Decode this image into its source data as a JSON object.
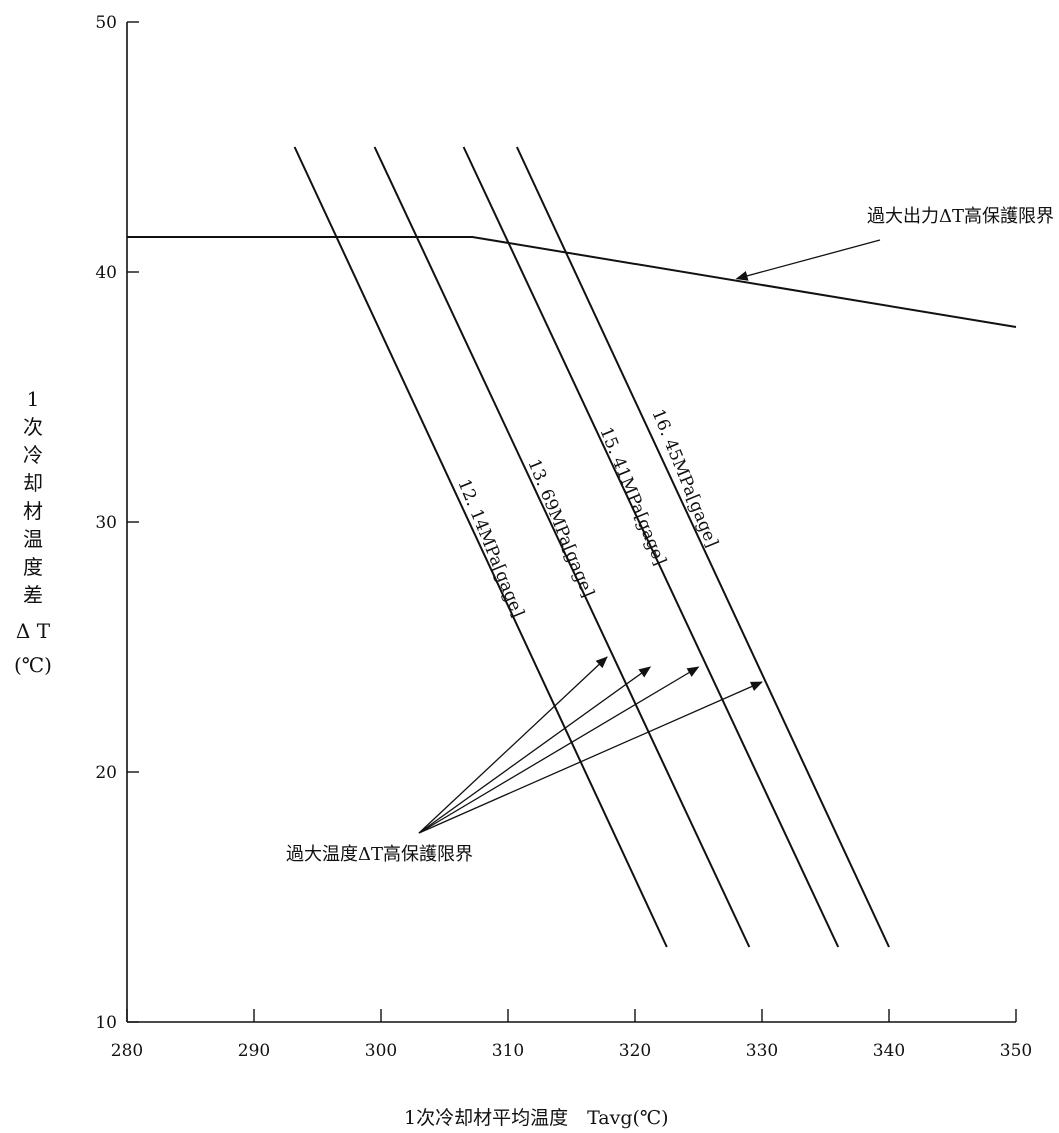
{
  "chart_data": {
    "type": "line",
    "xlabel": "1次冷却材平均温度　Tavg(℃)",
    "ylabel": "1次冷却材温度差ΔT(℃)",
    "ylabel_lines": [
      "1",
      "次",
      "冷",
      "却",
      "材",
      "温",
      "度",
      "差",
      "Δ T",
      "(℃)"
    ],
    "xlim": [
      280,
      350
    ],
    "ylim": [
      10,
      50
    ],
    "x_ticks": [
      280,
      290,
      300,
      310,
      320,
      330,
      340,
      350
    ],
    "y_ticks": [
      10,
      20,
      30,
      40,
      50
    ],
    "grid": false,
    "series": [
      {
        "name": "過大出力ΔT高保護限界",
        "points": [
          [
            280,
            41.4
          ],
          [
            307.2,
            41.4
          ],
          [
            350,
            37.8
          ]
        ]
      },
      {
        "name": "12. 14MPa[gage]",
        "points": [
          [
            293.2,
            45.0
          ],
          [
            322.5,
            13.0
          ]
        ]
      },
      {
        "name": "13. 69MPa[gage]",
        "points": [
          [
            299.5,
            45.0
          ],
          [
            329.0,
            13.0
          ]
        ]
      },
      {
        "name": "15. 41MPa[gage]",
        "points": [
          [
            306.5,
            45.0
          ],
          [
            336.0,
            13.0
          ]
        ]
      },
      {
        "name": "16. 45MPa[gage]",
        "points": [
          [
            310.7,
            45.0
          ],
          [
            340.0,
            13.0
          ]
        ]
      }
    ],
    "annotations": {
      "overpower_label": "過大出力ΔT高保護限界",
      "overtemp_label": "過大温度ΔT高保護限界"
    }
  }
}
